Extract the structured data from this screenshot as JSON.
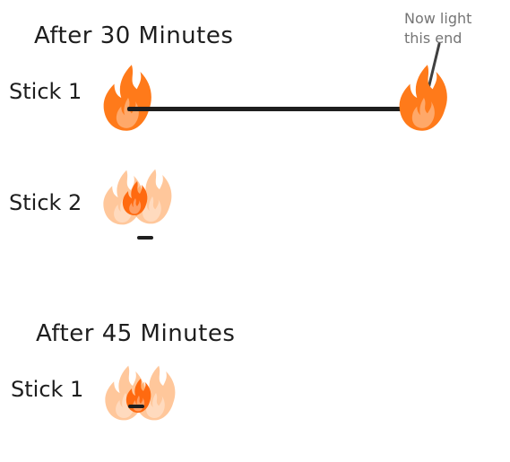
{
  "headings": {
    "after_30": "After 30 Minutes",
    "after_45": "After 45 Minutes"
  },
  "labels": {
    "stick1_top": "Stick 1",
    "stick2": "Stick 2",
    "stick1_bottom": "Stick 1"
  },
  "annotation": {
    "line1": "Now light",
    "line2": "this end"
  },
  "icons": {
    "flame": "flame-icon",
    "arrow": "arrow-icon"
  },
  "colors": {
    "flame_outer": "#ff7a1a",
    "flame_inner": "#ff5a00",
    "flame_faded": "#ffb37a",
    "stick": "#1e1e1e",
    "annotation": "#757575"
  }
}
